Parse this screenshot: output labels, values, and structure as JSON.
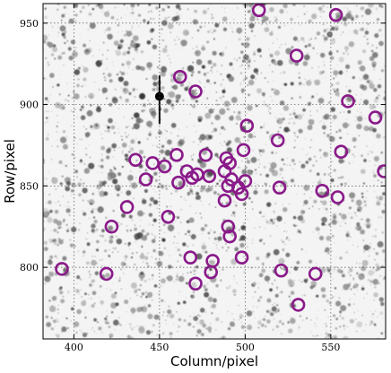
{
  "chart_data": {
    "type": "scatter",
    "title": "",
    "xlabel": "Column/pixel",
    "ylabel": "Row/pixel",
    "xlim": [
      382,
      582
    ],
    "ylim": [
      756,
      962
    ],
    "x_ticks": [
      400,
      450,
      500,
      550
    ],
    "y_ticks": [
      800,
      850,
      900,
      950
    ],
    "grid": true,
    "background": "grayscale star field image",
    "marker_color": "#8a1a8a",
    "points": [
      {
        "x": 508,
        "y": 958
      },
      {
        "x": 553,
        "y": 955
      },
      {
        "x": 530,
        "y": 930
      },
      {
        "x": 462,
        "y": 917
      },
      {
        "x": 471,
        "y": 908
      },
      {
        "x": 560,
        "y": 902
      },
      {
        "x": 576,
        "y": 892
      },
      {
        "x": 501,
        "y": 887
      },
      {
        "x": 519,
        "y": 878
      },
      {
        "x": 556,
        "y": 871
      },
      {
        "x": 460,
        "y": 869
      },
      {
        "x": 436,
        "y": 866
      },
      {
        "x": 446,
        "y": 864
      },
      {
        "x": 477,
        "y": 869
      },
      {
        "x": 489,
        "y": 867
      },
      {
        "x": 491,
        "y": 864
      },
      {
        "x": 499,
        "y": 872
      },
      {
        "x": 453,
        "y": 862
      },
      {
        "x": 466,
        "y": 859
      },
      {
        "x": 472,
        "y": 857
      },
      {
        "x": 469,
        "y": 855
      },
      {
        "x": 479,
        "y": 856
      },
      {
        "x": 488,
        "y": 859
      },
      {
        "x": 492,
        "y": 854
      },
      {
        "x": 500,
        "y": 853
      },
      {
        "x": 496,
        "y": 849
      },
      {
        "x": 490,
        "y": 850
      },
      {
        "x": 442,
        "y": 854
      },
      {
        "x": 461,
        "y": 852
      },
      {
        "x": 520,
        "y": 849
      },
      {
        "x": 498,
        "y": 845
      },
      {
        "x": 488,
        "y": 841
      },
      {
        "x": 545,
        "y": 847
      },
      {
        "x": 554,
        "y": 843
      },
      {
        "x": 581,
        "y": 859
      },
      {
        "x": 431,
        "y": 837
      },
      {
        "x": 455,
        "y": 831
      },
      {
        "x": 422,
        "y": 825
      },
      {
        "x": 490,
        "y": 825
      },
      {
        "x": 491,
        "y": 819
      },
      {
        "x": 468,
        "y": 806
      },
      {
        "x": 481,
        "y": 804
      },
      {
        "x": 498,
        "y": 806
      },
      {
        "x": 393,
        "y": 799
      },
      {
        "x": 419,
        "y": 796
      },
      {
        "x": 480,
        "y": 797
      },
      {
        "x": 521,
        "y": 798
      },
      {
        "x": 541,
        "y": 796
      },
      {
        "x": 471,
        "y": 790
      },
      {
        "x": 531,
        "y": 777
      }
    ]
  }
}
